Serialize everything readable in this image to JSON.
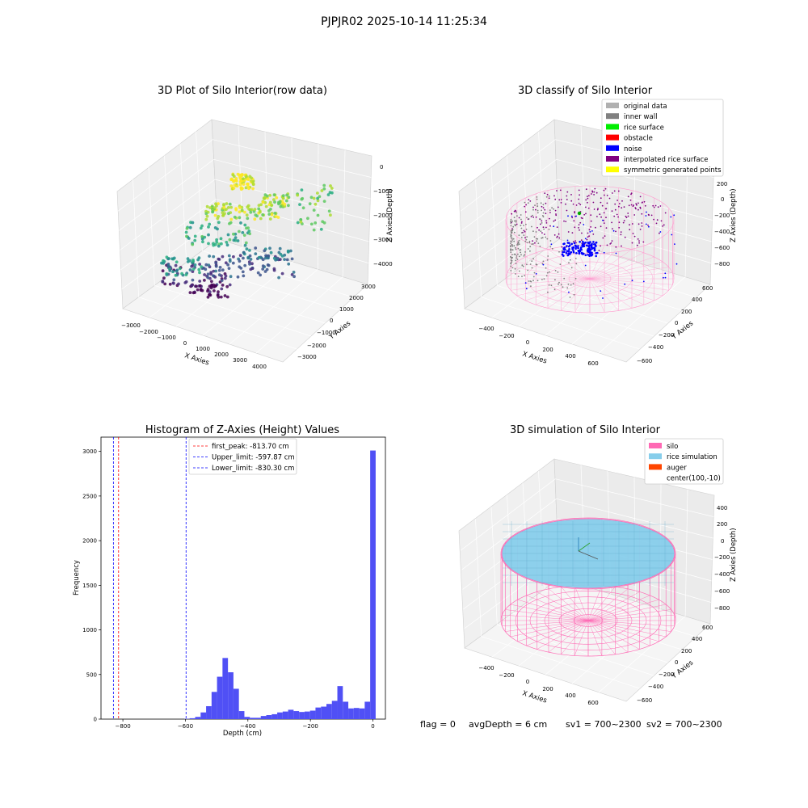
{
  "figure": {
    "title": "PJPJR02 2025-10-14 11:25:34",
    "footer": {
      "flag": "flag = 0",
      "avg_depth": "avgDepth = 6 cm",
      "sv1": "sv1 = 700~2300",
      "sv2": "sv2 = 700~2300"
    }
  },
  "chart_data": [
    {
      "type": "scatter",
      "title": "3D Plot of Silo Interior(row data)",
      "xlabel": "X Axies",
      "ylabel": "Y Axies",
      "zlabel": "Z Axies (Depth)",
      "xticks": [
        "−3000",
        "−2000",
        "−1000",
        "0",
        "1000",
        "2000",
        "3000",
        "4000"
      ],
      "yticks": [
        "−3000",
        "−2000",
        "−1000",
        "0",
        "1000",
        "2000",
        "3000"
      ],
      "zticks": [
        "−4000",
        "−3000",
        "−2000",
        "−1000",
        "0"
      ],
      "colormap": "viridis"
    },
    {
      "type": "scatter",
      "title": "3D classify of Silo Interior",
      "xlabel": "X Axies",
      "ylabel": "Y Axies",
      "zlabel": "Z Axies (Depth)",
      "xticks": [
        "−400",
        "−200",
        "0",
        "200",
        "400",
        "600"
      ],
      "yticks": [
        "−600",
        "−400",
        "−200",
        "0",
        "200",
        "400",
        "600"
      ],
      "zticks": [
        "−800",
        "−600",
        "−400",
        "−200",
        "0",
        "200"
      ],
      "legend": [
        {
          "label": "original data",
          "color": "#b0b0b0"
        },
        {
          "label": "inner wall",
          "color": "#808080"
        },
        {
          "label": "rice surface",
          "color": "#00ee00"
        },
        {
          "label": "obstacle",
          "color": "#ff0000"
        },
        {
          "label": "noise",
          "color": "#0000ff"
        },
        {
          "label": "interpolated rice surface",
          "color": "#800080"
        },
        {
          "label": "symmetric generated points",
          "color": "#ffff00"
        }
      ],
      "legend_position": "top-right"
    },
    {
      "type": "bar",
      "title": "Histogram of Z-Axies (Height) Values",
      "xlabel": "Depth (cm)",
      "ylabel": "Frequency",
      "xlim": [
        -870,
        40
      ],
      "ylim": [
        0,
        3160
      ],
      "xticks": [
        -800,
        -600,
        -400,
        -200,
        0
      ],
      "yticks": [
        0,
        500,
        1000,
        1500,
        2000,
        2500,
        3000
      ],
      "bin_width": 17.5,
      "bar_color": "#5050f5",
      "bins": [
        {
          "x": -595,
          "y": 3
        },
        {
          "x": -577.5,
          "y": 10
        },
        {
          "x": -560,
          "y": 25
        },
        {
          "x": -542.5,
          "y": 75
        },
        {
          "x": -525,
          "y": 145
        },
        {
          "x": -507.5,
          "y": 305
        },
        {
          "x": -490,
          "y": 475
        },
        {
          "x": -472.5,
          "y": 685
        },
        {
          "x": -455,
          "y": 525
        },
        {
          "x": -437.5,
          "y": 340
        },
        {
          "x": -420,
          "y": 90
        },
        {
          "x": -402.5,
          "y": 25
        },
        {
          "x": -385,
          "y": 15
        },
        {
          "x": -367.5,
          "y": 15
        },
        {
          "x": -350,
          "y": 35
        },
        {
          "x": -332.5,
          "y": 45
        },
        {
          "x": -315,
          "y": 55
        },
        {
          "x": -297.5,
          "y": 75
        },
        {
          "x": -280,
          "y": 85
        },
        {
          "x": -262.5,
          "y": 105
        },
        {
          "x": -245,
          "y": 90
        },
        {
          "x": -227.5,
          "y": 80
        },
        {
          "x": -210,
          "y": 85
        },
        {
          "x": -192.5,
          "y": 95
        },
        {
          "x": -175,
          "y": 130
        },
        {
          "x": -157.5,
          "y": 140
        },
        {
          "x": -140,
          "y": 170
        },
        {
          "x": -122.5,
          "y": 205
        },
        {
          "x": -105,
          "y": 370
        },
        {
          "x": -87.5,
          "y": 195
        },
        {
          "x": -70,
          "y": 120
        },
        {
          "x": -52.5,
          "y": 125
        },
        {
          "x": -35,
          "y": 120
        },
        {
          "x": -17.5,
          "y": 195
        },
        {
          "x": 0,
          "y": 3010
        }
      ],
      "vlines": [
        {
          "label": "first_peak: -813.70 cm",
          "x": -813.7,
          "color": "#ff0000"
        },
        {
          "label": "Upper_limit: -597.87 cm",
          "x": -597.87,
          "color": "#0000ff"
        },
        {
          "label": "Lower_limit: -830.30 cm",
          "x": -830.3,
          "color": "#0000ff"
        }
      ],
      "legend_position": "top-center"
    },
    {
      "type": "scatter",
      "title": "3D simulation of Silo Interior",
      "xlabel": "X Axies",
      "ylabel": "Y Axies",
      "zlabel": "Z Axies (Depth)",
      "xticks": [
        "−400",
        "−200",
        "0",
        "200",
        "400",
        "600"
      ],
      "yticks": [
        "−600",
        "−400",
        "−200",
        "0",
        "200",
        "400",
        "600"
      ],
      "zticks": [
        "−800",
        "−600",
        "−400",
        "−200",
        "0",
        "200",
        "400"
      ],
      "legend": [
        {
          "label": "silo",
          "color": "#ff69b4"
        },
        {
          "label": "rice simulation",
          "color": "#87ceeb"
        },
        {
          "label": "auger",
          "color": "#ff4500"
        },
        {
          "label": "center(100,-10)",
          "color": "#ffffff"
        }
      ],
      "legend_position": "top-right"
    }
  ]
}
